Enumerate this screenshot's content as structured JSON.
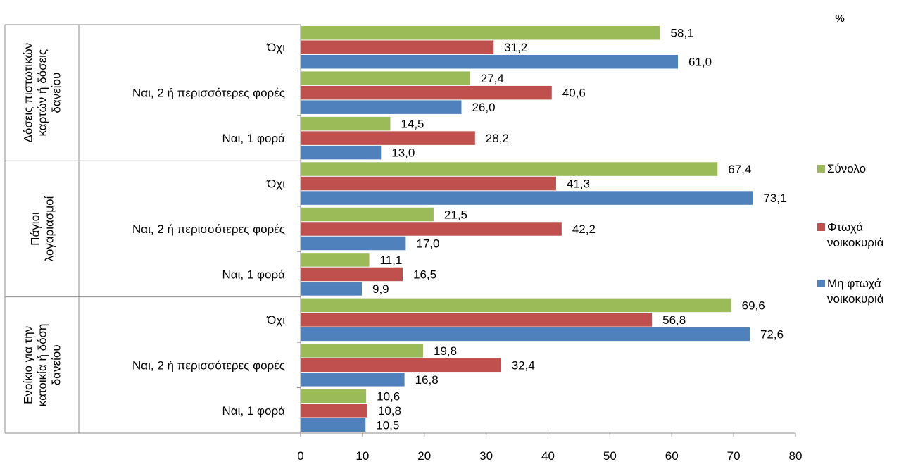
{
  "chart_data": {
    "type": "bar",
    "orientation": "horizontal",
    "unit_label": "%",
    "xlim": [
      0,
      80
    ],
    "x_ticks": [
      "0",
      "10",
      "20",
      "30",
      "40",
      "50",
      "60",
      "70",
      "80"
    ],
    "groups": [
      {
        "label": "Δόσεις πιστωτικών καρτών  ή δόσεις δανείου",
        "label_lines": [
          "Δόσεις πιστωτικών",
          "καρτών  ή δόσεις",
          "δανείου"
        ],
        "categories": [
          "Όχι",
          "Ναι, 2 ή περισσότερες φορές",
          "Ναι, 1 φορά"
        ],
        "series": [
          {
            "name": "Σύνολο",
            "values": [
              58.1,
              27.4,
              14.5
            ],
            "labels": [
              "58,1",
              "27,4",
              "14,5"
            ]
          },
          {
            "name": "Φτωχά νοικοκυριά",
            "values": [
              31.2,
              40.6,
              28.2
            ],
            "labels": [
              "31,2",
              "40,6",
              "28,2"
            ]
          },
          {
            "name": "Μη φτωχά νοικοκυριά",
            "values": [
              61.0,
              26.0,
              13.0
            ],
            "labels": [
              "61,0",
              "26,0",
              "13,0"
            ]
          }
        ]
      },
      {
        "label": "Πάγιοι λογαριασμοί",
        "label_lines": [
          "Πάγιοι",
          "λογαριασμοί"
        ],
        "categories": [
          "Όχι",
          "Ναι, 2 ή περισσότερες φορές",
          "Ναι, 1 φορά"
        ],
        "series": [
          {
            "name": "Σύνολο",
            "values": [
              67.4,
              21.5,
              11.1
            ],
            "labels": [
              "67,4",
              "21,5",
              "11,1"
            ]
          },
          {
            "name": "Φτωχά νοικοκυριά",
            "values": [
              41.3,
              42.2,
              16.5
            ],
            "labels": [
              "41,3",
              "42,2",
              "16,5"
            ]
          },
          {
            "name": "Μη φτωχά νοικοκυριά",
            "values": [
              73.1,
              17.0,
              9.9
            ],
            "labels": [
              "73,1",
              "17,0",
              "9,9"
            ]
          }
        ]
      },
      {
        "label": "Ενοίκιο για την κατοικία ή δόση δανείου",
        "label_lines": [
          "Ενοίκιο για την",
          "κατοικία ή δόση",
          "δανείου"
        ],
        "categories": [
          "Όχι",
          "Ναι, 2 ή περισσότερες φορές",
          "Ναι, 1 φορά"
        ],
        "series": [
          {
            "name": "Σύνολο",
            "values": [
              69.6,
              19.8,
              10.6
            ],
            "labels": [
              "69,6",
              "19,8",
              "10,6"
            ]
          },
          {
            "name": "Φτωχά νοικοκυριά",
            "values": [
              56.8,
              32.4,
              10.8
            ],
            "labels": [
              "56,8",
              "32,4",
              "10,8"
            ]
          },
          {
            "name": "Μη φτωχά νοικοκυριά",
            "values": [
              72.6,
              16.8,
              10.5
            ],
            "labels": [
              "72,6",
              "16,8",
              "10,5"
            ]
          }
        ]
      }
    ],
    "legend": {
      "placement": "right",
      "entries": [
        {
          "name": "Σύνολο",
          "lines": [
            "Σύνολο"
          ],
          "color": "#9BBB59"
        },
        {
          "name": "Φτωχά νοικοκυριά",
          "lines": [
            "Φτωχά",
            "νοικοκυριά"
          ],
          "color": "#C0504D"
        },
        {
          "name": "Μη φτωχά νοικοκυριά",
          "lines": [
            "Μη φτωχά",
            "νοικοκυριά"
          ],
          "color": "#4F81BD"
        }
      ]
    },
    "colors": [
      "#9BBB59",
      "#C0504D",
      "#4F81BD"
    ],
    "grid": false
  }
}
